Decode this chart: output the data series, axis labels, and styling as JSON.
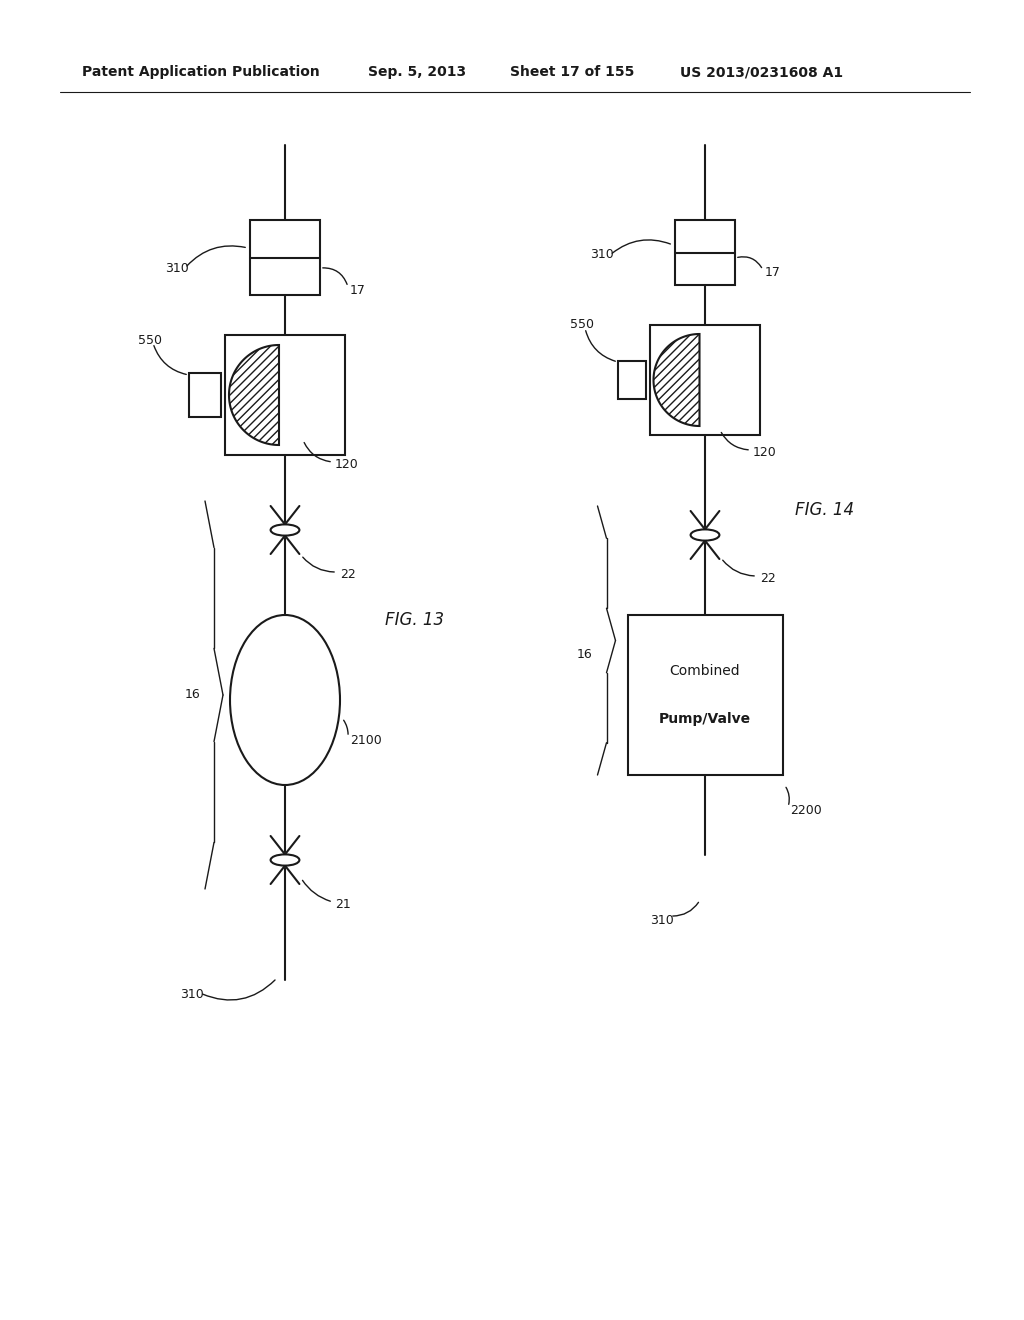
{
  "bg_color": "#ffffff",
  "header_text": "Patent Application Publication",
  "header_date": "Sep. 5, 2013",
  "header_sheet": "Sheet 17 of 155",
  "header_patent": "US 2013/0231608 A1",
  "fig13_label": "FIG. 13",
  "fig14_label": "FIG. 14",
  "line_color": "#1a1a1a",
  "lw": 1.5,
  "lw_thin": 1.0
}
